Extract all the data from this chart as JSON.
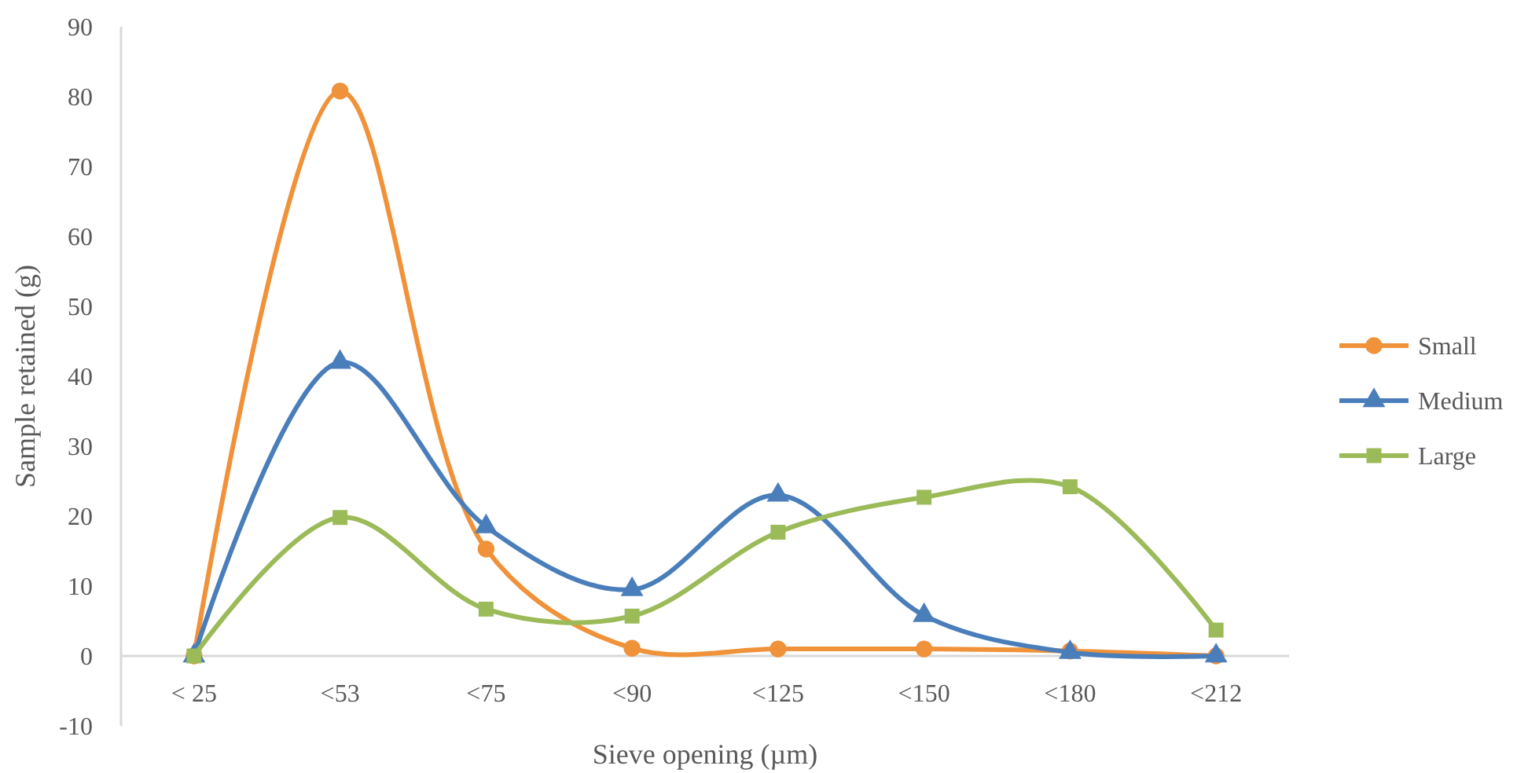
{
  "chart_data": {
    "type": "line",
    "xlabel": "Sieve opening (µm)",
    "ylabel": "Sample retained (g)",
    "categories": [
      "< 25",
      "<53",
      "<75",
      "<90",
      "<125",
      "<150",
      "<180",
      "<212"
    ],
    "series": [
      {
        "name": "Small",
        "color": "#f0923a",
        "marker": "circle",
        "values": [
          0,
          80.8,
          15.3,
          1.1,
          1,
          1,
          0.7,
          0
        ]
      },
      {
        "name": "Medium",
        "color": "#4a7ebb",
        "marker": "triangle",
        "values": [
          0,
          42,
          18.5,
          9.5,
          23,
          5.8,
          0.5,
          0
        ]
      },
      {
        "name": "Large",
        "color": "#9bbb59",
        "marker": "square",
        "values": [
          0,
          19.8,
          6.7,
          5.7,
          17.7,
          22.7,
          24.2,
          3.7
        ]
      }
    ],
    "ylim": [
      -10,
      90
    ],
    "yticks": [
      -10,
      0,
      10,
      20,
      30,
      40,
      50,
      60,
      70,
      80,
      90
    ],
    "grid": false,
    "legend": "right"
  }
}
